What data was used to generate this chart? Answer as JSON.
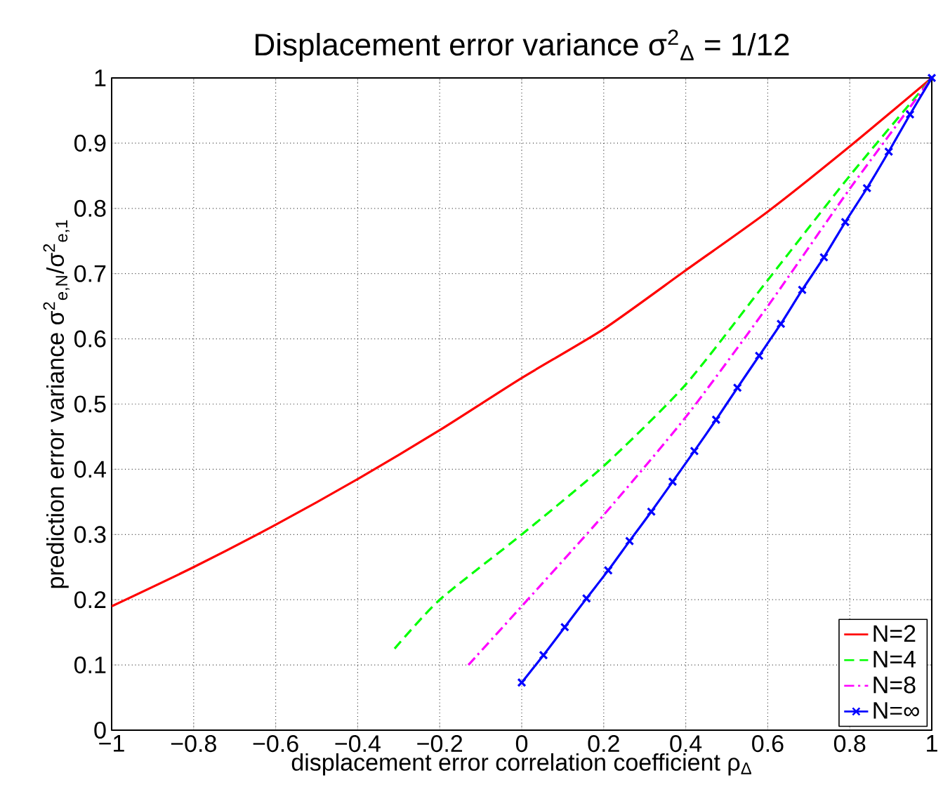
{
  "chart_data": {
    "type": "line",
    "title": "Displacement error variance σ$^{2}$$_{Δ}$ = 1/12",
    "xlabel": "displacement error correlation coefficient ρ$_{Δ}$",
    "ylabel": "prediction error variance σ$^{2}$$_{e,N}$/σ$^{2}$$_{e,1}$",
    "xlim": [
      -1,
      1
    ],
    "ylim": [
      0,
      1
    ],
    "xticks": [
      {
        "value": -1,
        "label": "−1"
      },
      {
        "value": -0.8,
        "label": "−0.8"
      },
      {
        "value": -0.6,
        "label": "−0.6"
      },
      {
        "value": -0.4,
        "label": "−0.4"
      },
      {
        "value": -0.2,
        "label": "−0.2"
      },
      0,
      0.2,
      0.4,
      0.6,
      0.8,
      1
    ],
    "yticks": [
      0,
      0.1,
      0.2,
      0.3,
      0.4,
      0.5,
      0.6,
      0.7,
      0.8,
      0.9,
      1
    ],
    "grid": true,
    "legend": "bottom right",
    "series": [
      {
        "name": "N=2",
        "color": "#ff0000",
        "line_style": "solid",
        "marker": "none",
        "x": [
          -1,
          -0.8,
          -0.6,
          -0.4,
          -0.2,
          0,
          0.2,
          0.4,
          0.6,
          0.8,
          1
        ],
        "values": [
          0.19,
          0.25,
          0.315,
          0.385,
          0.46,
          0.54,
          0.615,
          0.705,
          0.795,
          0.895,
          1
        ]
      },
      {
        "name": "N=4",
        "color": "#00ff00",
        "line_style": "dashed",
        "marker": "none",
        "x": [
          -0.31,
          -0.2,
          0,
          0.2,
          0.4,
          0.6,
          0.8,
          1
        ],
        "values": [
          0.125,
          0.2,
          0.3,
          0.405,
          0.53,
          0.69,
          0.85,
          1
        ]
      },
      {
        "name": "N=8",
        "color": "#ff00ff",
        "line_style": "dashdot",
        "marker": "none",
        "x": [
          -0.13,
          0,
          0.2,
          0.4,
          0.6,
          0.8,
          1
        ],
        "values": [
          0.1,
          0.19,
          0.33,
          0.48,
          0.65,
          0.83,
          1
        ]
      },
      {
        "name": "N=∞",
        "color": "#0000ff",
        "line_style": "solid",
        "marker": "cross",
        "x": [
          0,
          0.053,
          0.105,
          0.158,
          0.211,
          0.263,
          0.316,
          0.368,
          0.421,
          0.474,
          0.526,
          0.579,
          0.632,
          0.684,
          0.737,
          0.789,
          0.842,
          0.895,
          0.947,
          1
        ],
        "values": [
          0.073,
          0.115,
          0.158,
          0.202,
          0.245,
          0.29,
          0.335,
          0.381,
          0.428,
          0.476,
          0.525,
          0.574,
          0.623,
          0.675,
          0.725,
          0.779,
          0.831,
          0.887,
          0.944,
          1
        ]
      }
    ]
  }
}
